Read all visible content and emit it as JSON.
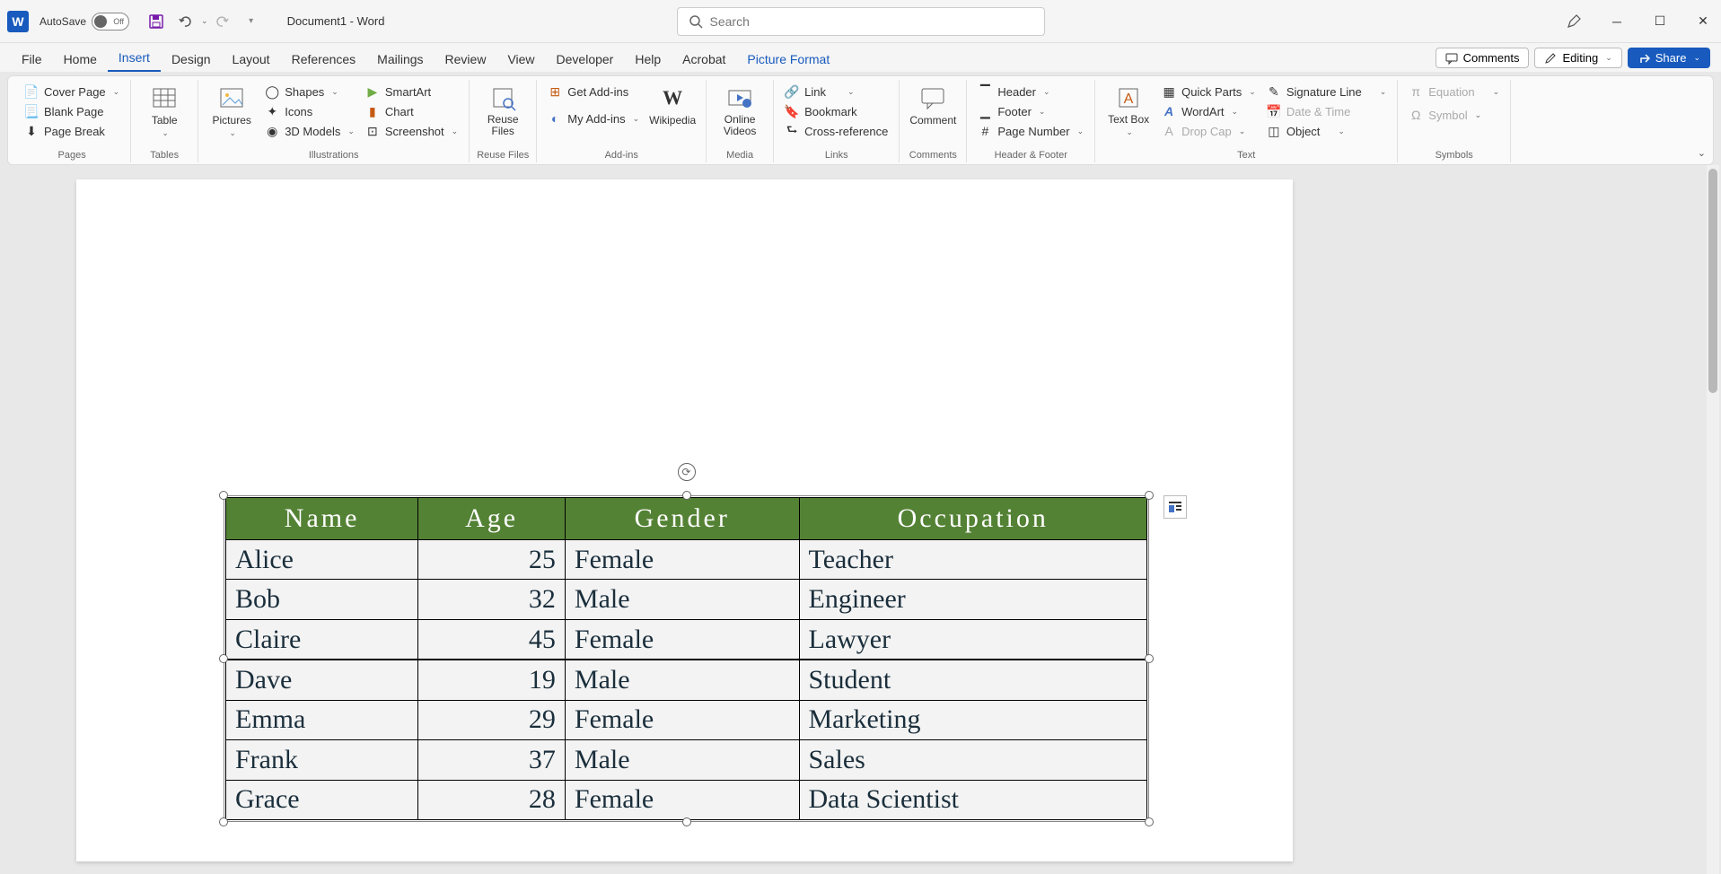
{
  "title_bar": {
    "app_initial": "W",
    "autosave_label": "AutoSave",
    "autosave_state": "Off",
    "doc_title": "Document1  -  Word",
    "search_placeholder": "Search"
  },
  "tabs": {
    "items": [
      "File",
      "Home",
      "Insert",
      "Design",
      "Layout",
      "References",
      "Mailings",
      "Review",
      "View",
      "Developer",
      "Help",
      "Acrobat",
      "Picture Format"
    ],
    "active_index": 2,
    "context_index": 12,
    "comments": "Comments",
    "editing": "Editing",
    "share": "Share"
  },
  "ribbon": {
    "pages": {
      "label": "Pages",
      "cover": "Cover Page",
      "blank": "Blank Page",
      "break": "Page Break"
    },
    "tables": {
      "label": "Tables",
      "table": "Table"
    },
    "illustrations": {
      "label": "Illustrations",
      "pictures": "Pictures",
      "shapes": "Shapes",
      "icons": "Icons",
      "models": "3D Models",
      "smartart": "SmartArt",
      "chart": "Chart",
      "screenshot": "Screenshot"
    },
    "reuse": {
      "label": "Reuse Files",
      "btn": "Reuse Files"
    },
    "addins": {
      "label": "Add-ins",
      "get": "Get Add-ins",
      "my": "My Add-ins",
      "wiki": "Wikipedia"
    },
    "media": {
      "label": "Media",
      "online": "Online Videos"
    },
    "links": {
      "label": "Links",
      "link": "Link",
      "bookmark": "Bookmark",
      "crossref": "Cross-reference"
    },
    "comments": {
      "label": "Comments",
      "comment": "Comment"
    },
    "hf": {
      "label": "Header & Footer",
      "header": "Header",
      "footer": "Footer",
      "pagenum": "Page Number"
    },
    "text": {
      "label": "Text",
      "textbox": "Text Box",
      "quickparts": "Quick Parts",
      "wordart": "WordArt",
      "dropcap": "Drop Cap",
      "sigline": "Signature Line",
      "datetime": "Date & Time",
      "object": "Object"
    },
    "symbols": {
      "label": "Symbols",
      "equation": "Equation",
      "symbol": "Symbol"
    }
  },
  "table": {
    "headers": [
      "Name",
      "Age",
      "Gender",
      "Occupation"
    ],
    "header_bg": "#548235",
    "header_fg": "#ffffff",
    "cell_bg": "#f3f3f3",
    "cell_fg": "#1a2e3b",
    "border_color": "#000000",
    "font_family": "Georgia, serif",
    "header_fontsize": 30,
    "cell_fontsize": 30,
    "rows": [
      {
        "name": "Alice",
        "age": 25,
        "gender": "Female",
        "occupation": "Teacher"
      },
      {
        "name": "Bob",
        "age": 32,
        "gender": "Male",
        "occupation": "Engineer"
      },
      {
        "name": "Claire",
        "age": 45,
        "gender": "Female",
        "occupation": "Lawyer"
      },
      {
        "name": "Dave",
        "age": 19,
        "gender": "Male",
        "occupation": "Student"
      },
      {
        "name": "Emma",
        "age": 29,
        "gender": "Female",
        "occupation": "Marketing"
      },
      {
        "name": "Frank",
        "age": 37,
        "gender": "Male",
        "occupation": "Sales"
      },
      {
        "name": "Grace",
        "age": 28,
        "gender": "Female",
        "occupation": "Data Scientist"
      }
    ],
    "col_align": [
      "left",
      "right",
      "left",
      "left"
    ]
  }
}
